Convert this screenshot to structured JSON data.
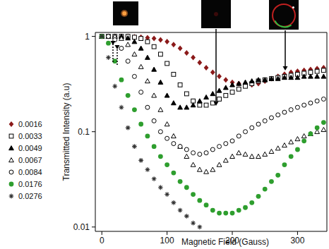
{
  "chart_data": {
    "type": "scatter",
    "x_label": "Magnetic Field (Gauss)",
    "y_label": "Transmitted Intensity (a.u)",
    "log": "y",
    "grid": false,
    "legend": "left",
    "xlim": [
      -10,
      345
    ],
    "ylim": [
      0.009,
      1.1
    ],
    "xticks": [
      0,
      100,
      200,
      300
    ],
    "yticks": [
      0.01,
      0.1,
      1
    ],
    "x": [
      0,
      10,
      20,
      30,
      40,
      50,
      60,
      70,
      80,
      90,
      100,
      110,
      120,
      130,
      140,
      150,
      160,
      170,
      180,
      190,
      200,
      210,
      220,
      230,
      240,
      250,
      260,
      270,
      280,
      290,
      300,
      310,
      320,
      330,
      340
    ],
    "series": [
      {
        "name": "0.0016",
        "color": "#8b1a1a",
        "marker": "diamond",
        "values": [
          1,
          1,
          1,
          1,
          1,
          0.99,
          0.98,
          0.97,
          0.95,
          0.92,
          0.88,
          0.82,
          0.75,
          0.67,
          0.6,
          0.53,
          0.47,
          0.42,
          0.38,
          0.35,
          0.33,
          0.32,
          0.31,
          0.31,
          0.32,
          0.34,
          0.36,
          0.38,
          0.4,
          0.42,
          0.43,
          0.44,
          0.45,
          0.46,
          0.47
        ]
      },
      {
        "name": "0.0033",
        "color": "#000000",
        "marker": "square-open",
        "values": [
          1,
          1,
          1,
          1,
          1,
          0.98,
          0.95,
          0.88,
          0.78,
          0.65,
          0.52,
          0.4,
          0.31,
          0.25,
          0.21,
          0.19,
          0.19,
          0.2,
          0.22,
          0.24,
          0.26,
          0.28,
          0.3,
          0.32,
          0.34,
          0.35,
          0.36,
          0.37,
          0.38,
          0.39,
          0.4,
          0.41,
          0.42,
          0.43,
          0.44
        ]
      },
      {
        "name": "0.0049",
        "color": "#000000",
        "marker": "triangle",
        "values": [
          1,
          1,
          1,
          1,
          0.96,
          0.88,
          0.75,
          0.6,
          0.45,
          0.33,
          0.24,
          0.2,
          0.18,
          0.18,
          0.19,
          0.21,
          0.23,
          0.25,
          0.27,
          0.29,
          0.31,
          0.32,
          0.33,
          0.34,
          0.35,
          0.35,
          0.36,
          0.36,
          0.37,
          0.37,
          0.37,
          0.38,
          0.38,
          0.38,
          0.38
        ]
      },
      {
        "name": "0.0067",
        "color": "#000000",
        "marker": "triangle-open",
        "values": [
          1,
          1,
          1,
          0.95,
          0.82,
          0.65,
          0.48,
          0.34,
          0.24,
          0.17,
          0.12,
          0.09,
          0.07,
          0.055,
          0.045,
          0.04,
          0.038,
          0.04,
          0.045,
          0.05,
          0.055,
          0.06,
          0.058,
          0.055,
          0.055,
          0.058,
          0.062,
          0.067,
          0.072,
          0.078,
          0.084,
          0.09,
          0.095,
          0.1,
          0.105
        ]
      },
      {
        "name": "0.0084",
        "color": "#000000",
        "marker": "circle-open",
        "values": [
          1,
          1,
          0.92,
          0.75,
          0.55,
          0.38,
          0.26,
          0.18,
          0.13,
          0.1,
          0.085,
          0.075,
          0.07,
          0.065,
          0.06,
          0.058,
          0.06,
          0.065,
          0.07,
          0.075,
          0.08,
          0.09,
          0.1,
          0.11,
          0.12,
          0.13,
          0.14,
          0.15,
          0.16,
          0.17,
          0.18,
          0.19,
          0.2,
          0.21,
          0.22
        ]
      },
      {
        "name": "0.0176",
        "color": "#2e9e2e",
        "marker": "circle",
        "values": [
          1,
          0.85,
          0.55,
          0.35,
          0.24,
          0.17,
          0.12,
          0.09,
          0.07,
          0.055,
          0.045,
          0.037,
          0.03,
          0.026,
          0.022,
          0.019,
          0.017,
          0.015,
          0.014,
          0.014,
          0.014,
          0.015,
          0.016,
          0.018,
          0.021,
          0.025,
          0.03,
          0.035,
          0.045,
          0.055,
          0.065,
          0.08,
          0.095,
          0.11,
          0.125
        ]
      },
      {
        "name": "0.0276",
        "color": "#333333",
        "marker": "asterisk",
        "values": [
          1,
          0.6,
          0.3,
          0.18,
          0.11,
          0.07,
          0.05,
          0.04,
          0.032,
          0.026,
          0.022,
          0.018,
          0.015,
          0.013,
          0.011,
          0.01,
          null,
          null,
          null,
          null,
          null,
          null,
          null,
          null,
          null,
          null,
          null,
          null,
          null,
          null,
          null,
          null,
          null,
          null,
          null
        ]
      }
    ]
  }
}
